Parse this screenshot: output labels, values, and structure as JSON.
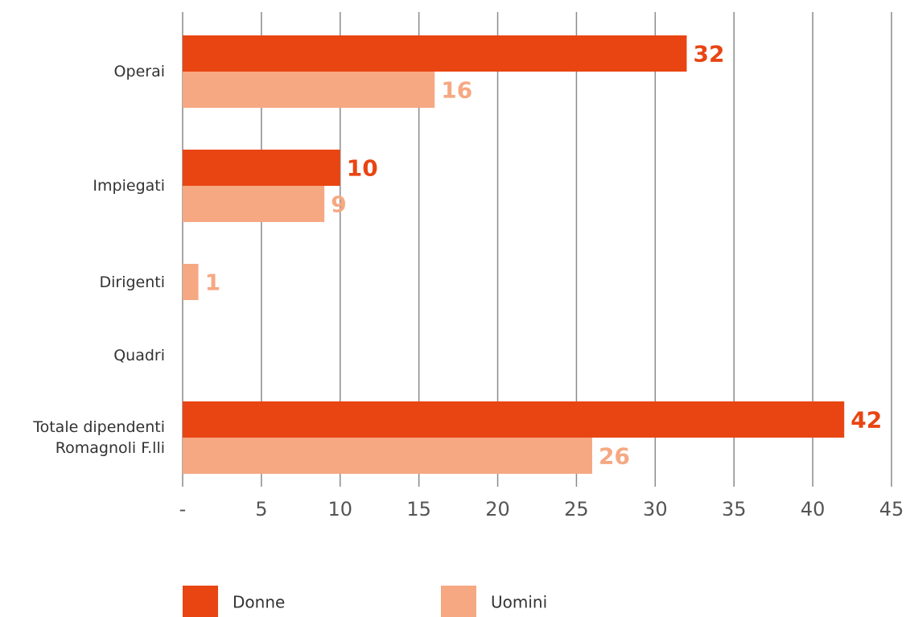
{
  "chart_data": {
    "type": "bar",
    "orientation": "horizontal",
    "categories": [
      "Operai",
      "Impiegati",
      "Dirigenti",
      "Quadri",
      "Totale dipendenti\nRomagnoli F.lli"
    ],
    "series": [
      {
        "name": "Donne",
        "color": "#e84512",
        "values": [
          32,
          10,
          null,
          null,
          42
        ]
      },
      {
        "name": "Uomini",
        "color": "#f6a882",
        "values": [
          16,
          9,
          1,
          null,
          26
        ]
      }
    ],
    "xlim": [
      0,
      45
    ],
    "xticks": [
      {
        "value": 0,
        "label": "-"
      },
      5,
      10,
      15,
      20,
      25,
      30,
      35,
      40,
      45
    ],
    "grid": true,
    "legend": "bottom"
  }
}
